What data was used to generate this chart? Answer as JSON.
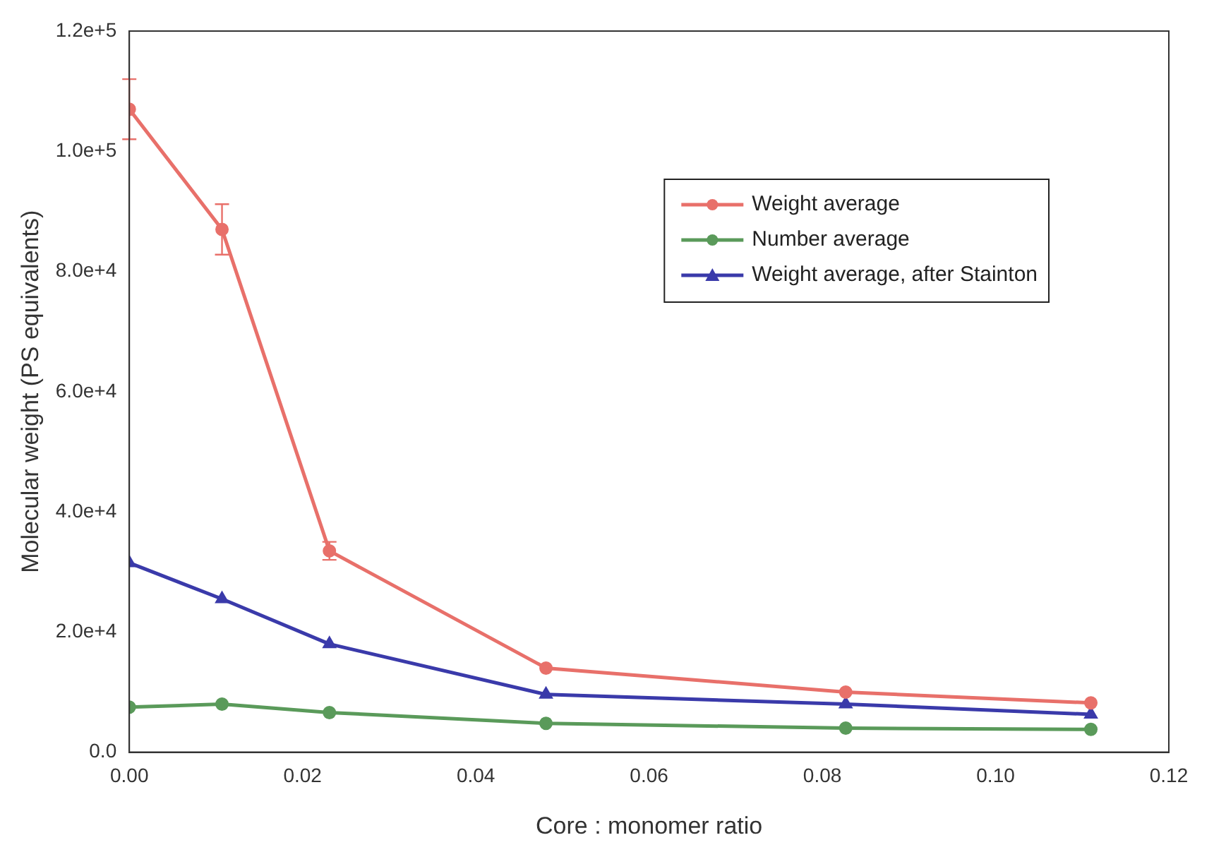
{
  "chart_data": {
    "type": "line",
    "xlabel": "Core : monomer ratio",
    "ylabel": "Molecular weight (PS equivalents)",
    "x": [
      0.0,
      0.0107,
      0.0231,
      0.0481,
      0.0827,
      0.111
    ],
    "xlim": [
      0,
      0.12
    ],
    "xticks": [
      {
        "value": 0,
        "label": "0.00"
      },
      {
        "value": 0.02,
        "label": "0.02"
      },
      {
        "value": 0.04,
        "label": "0.04"
      },
      {
        "value": 0.06,
        "label": "0.06"
      },
      {
        "value": 0.08,
        "label": "0.08"
      },
      {
        "value": 0.1,
        "label": "0.10"
      },
      {
        "value": 0.12,
        "label": "0.12"
      }
    ],
    "ylim": [
      0,
      120000
    ],
    "yticks": [
      {
        "value": 0,
        "label": "0.0"
      },
      {
        "value": 20000,
        "label": "2.0e+4"
      },
      {
        "value": 40000,
        "label": "4.0e+4"
      },
      {
        "value": 60000,
        "label": "6.0e+4"
      },
      {
        "value": 80000,
        "label": "8.0e+4"
      },
      {
        "value": 100000,
        "label": "1.0e+5"
      },
      {
        "value": 120000,
        "label": "1.2e+5"
      }
    ],
    "series": [
      {
        "name": "Weight average",
        "color": "#e8706a",
        "marker": "circle",
        "values": [
          107000,
          87000,
          33500,
          14000,
          10000,
          8200
        ],
        "errors": [
          5000,
          4200,
          1500,
          null,
          null,
          null
        ]
      },
      {
        "name": "Number average",
        "color": "#5a9a5a",
        "marker": "circle",
        "values": [
          7500,
          8000,
          6600,
          4800,
          4000,
          3800
        ]
      },
      {
        "name": "Weight average, after Stainton",
        "color": "#3a3aaa",
        "marker": "triangle",
        "values": [
          31500,
          25500,
          18000,
          9600,
          8000,
          6300
        ]
      }
    ],
    "legend": "top right",
    "grid": false
  }
}
